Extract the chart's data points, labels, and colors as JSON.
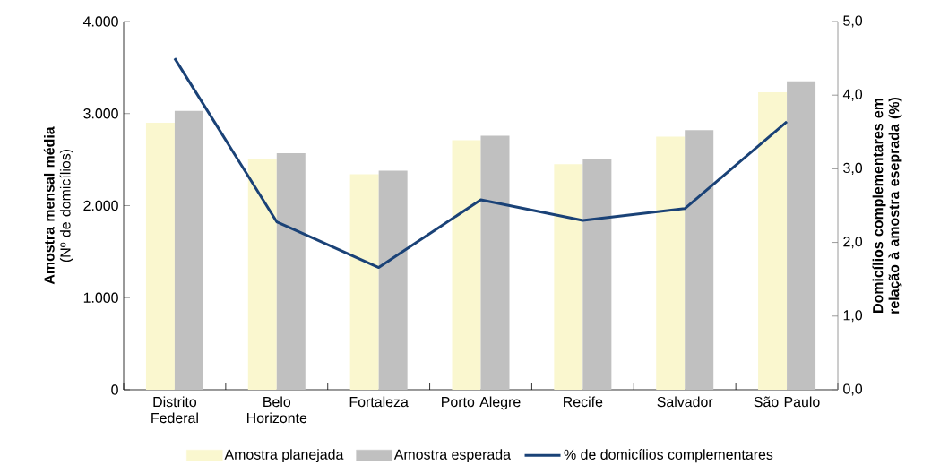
{
  "chart_data": {
    "type": "bar",
    "categories": [
      "Distrito Federal",
      "Belo Horizonte",
      "Fortaleza",
      "Porto Alegre",
      "Recife",
      "Salvador",
      "São Paulo"
    ],
    "series": [
      {
        "name": "Amostra planejada",
        "color": "#faf7cf",
        "values": [
          2900,
          2510,
          2340,
          2710,
          2450,
          2750,
          3230
        ]
      },
      {
        "name": "Amostra esperada",
        "color": "#c0c0c0",
        "values": [
          3030,
          2570,
          2380,
          2760,
          2510,
          2820,
          3350
        ]
      },
      {
        "name": "% de domicílios  complementares",
        "type": "line",
        "axis": "y2",
        "color": "#1a4277",
        "values": [
          4.5,
          2.28,
          1.66,
          2.58,
          2.3,
          2.46,
          3.64
        ]
      }
    ],
    "ylabel": "**Amostra mensal média** (Nº de domicílios)",
    "y2label": "Domicílios complementares em relação à amostra eseprada (%)",
    "ylim": [
      0,
      4000
    ],
    "yticks": [
      0,
      {
        "value": 1000,
        "label": "1.000"
      },
      {
        "value": 2000,
        "label": "2.000"
      },
      {
        "value": 3000,
        "label": "3.000"
      },
      {
        "value": 4000,
        "label": "4.000"
      }
    ],
    "y2lim": [
      0,
      5
    ],
    "y2ticks": [
      {
        "value": 0,
        "label": "0,0"
      },
      {
        "value": 1,
        "label": "1,0"
      },
      {
        "value": 2,
        "label": "2,0"
      },
      {
        "value": 3,
        "label": "3,0"
      },
      {
        "value": 4,
        "label": "4,0"
      },
      {
        "value": 5,
        "label": "5,0"
      }
    ],
    "legend": "bottom",
    "marker": "none",
    "line_style": "solid"
  }
}
